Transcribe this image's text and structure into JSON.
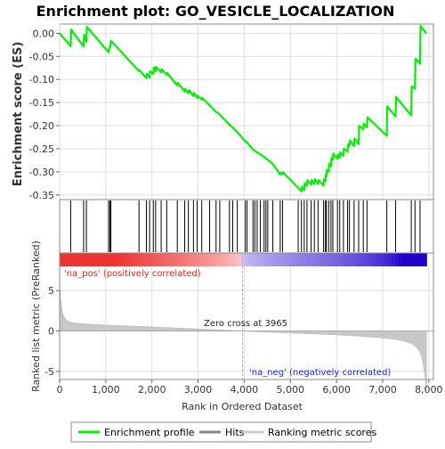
{
  "chart_data": {
    "type": "line",
    "title": "Enrichment plot: GO_VESICLE_LOCALIZATION",
    "xlabel": "Rank in Ordered Dataset",
    "ylabel_top": "Enrichment score (ES)",
    "ylabel_bottom": "Ranked list metric (PreRanked)",
    "xlim": [
      0,
      8100
    ],
    "x_ticks": [
      0,
      1000,
      2000,
      3000,
      4000,
      5000,
      6000,
      7000,
      8000
    ],
    "x_tick_labels": [
      "0",
      "1,000",
      "2,000",
      "3,000",
      "4,000",
      "5,000",
      "6,000",
      "7,000",
      "8,000"
    ],
    "es_ylim": [
      -0.36,
      0.02
    ],
    "es_ticks": [
      0.0,
      -0.05,
      -0.1,
      -0.15,
      -0.2,
      -0.25,
      -0.3,
      -0.35
    ],
    "es_tick_labels": [
      "0.00",
      "-0.05",
      "-0.10",
      "-0.15",
      "-0.20",
      "-0.25",
      "-0.30",
      "-0.35"
    ],
    "metric_ylim": [
      -6,
      8
    ],
    "metric_ticks": [
      5,
      0,
      -5
    ],
    "metric_tick_labels": [
      "5",
      "0",
      "-5"
    ],
    "annotations": {
      "pos_label": "'na_pos' (positively correlated)",
      "neg_label": "'na_neg' (negatively correlated)",
      "zero_cross": "Zero cross at 3965"
    },
    "zero_cross_rank": 3965,
    "legend": [
      {
        "label": "Enrichment profile",
        "color": "#00ee00"
      },
      {
        "label": "Hits",
        "color": "#888888"
      },
      {
        "label": "Ranking metric scores",
        "color": "#cccccc"
      }
    ],
    "colors": {
      "es_line": "#00ee00",
      "hit": "#000000",
      "metric_fill": "#c8c8c8",
      "pos_text": "#dd2222",
      "neg_text": "#2222cc",
      "gradient_pos": "#ee3333",
      "gradient_mid": "#ffffff",
      "gradient_neg": "#2200cc"
    },
    "hits": [
      240,
      520,
      580,
      1060,
      1090,
      1110,
      1720,
      1880,
      1950,
      2030,
      2080,
      2200,
      2320,
      2550,
      2710,
      2790,
      2900,
      2980,
      3080,
      3250,
      3390,
      3470,
      3680,
      3750,
      3850,
      4020,
      4060,
      4190,
      4230,
      4280,
      4350,
      4430,
      4470,
      4510,
      4620,
      4780,
      4830,
      5170,
      5240,
      5300,
      5360,
      5450,
      5520,
      5600,
      5720,
      5760,
      5780,
      5830,
      5880,
      5920,
      6020,
      6070,
      6150,
      6240,
      6280,
      6380,
      6480,
      6580,
      6660,
      7090,
      7280,
      7620,
      7700,
      7810
    ],
    "es_points": [
      [
        0,
        0.0
      ],
      [
        240,
        -0.028
      ],
      [
        250,
        0.008
      ],
      [
        520,
        -0.029
      ],
      [
        530,
        -0.003
      ],
      [
        580,
        -0.018
      ],
      [
        590,
        0.014
      ],
      [
        1060,
        -0.041
      ],
      [
        1070,
        -0.034
      ],
      [
        1100,
        -0.028
      ],
      [
        1110,
        -0.016
      ],
      [
        1720,
        -0.082
      ],
      [
        1730,
        -0.08
      ],
      [
        1880,
        -0.097
      ],
      [
        1890,
        -0.088
      ],
      [
        1950,
        -0.096
      ],
      [
        1960,
        -0.082
      ],
      [
        2030,
        -0.088
      ],
      [
        2040,
        -0.074
      ],
      [
        2080,
        -0.082
      ],
      [
        2090,
        -0.073
      ],
      [
        2200,
        -0.085
      ],
      [
        2210,
        -0.078
      ],
      [
        2320,
        -0.09
      ],
      [
        2330,
        -0.086
      ],
      [
        2550,
        -0.113
      ],
      [
        2560,
        -0.107
      ],
      [
        2710,
        -0.126
      ],
      [
        2720,
        -0.121
      ],
      [
        2790,
        -0.13
      ],
      [
        2800,
        -0.123
      ],
      [
        2900,
        -0.136
      ],
      [
        2910,
        -0.129
      ],
      [
        2980,
        -0.14
      ],
      [
        2990,
        -0.135
      ],
      [
        3080,
        -0.144
      ],
      [
        3090,
        -0.14
      ],
      [
        3250,
        -0.156
      ],
      [
        3390,
        -0.17
      ],
      [
        3470,
        -0.176
      ],
      [
        3680,
        -0.198
      ],
      [
        3750,
        -0.204
      ],
      [
        3850,
        -0.214
      ],
      [
        4020,
        -0.233
      ],
      [
        4060,
        -0.236
      ],
      [
        4190,
        -0.252
      ],
      [
        4230,
        -0.254
      ],
      [
        4280,
        -0.258
      ],
      [
        4350,
        -0.262
      ],
      [
        4430,
        -0.268
      ],
      [
        4470,
        -0.271
      ],
      [
        4510,
        -0.274
      ],
      [
        4620,
        -0.283
      ],
      [
        4780,
        -0.306
      ],
      [
        4790,
        -0.302
      ],
      [
        4830,
        -0.305
      ],
      [
        4840,
        -0.301
      ],
      [
        5170,
        -0.335
      ],
      [
        5240,
        -0.342
      ],
      [
        5250,
        -0.332
      ],
      [
        5300,
        -0.34
      ],
      [
        5310,
        -0.325
      ],
      [
        5360,
        -0.33
      ],
      [
        5370,
        -0.318
      ],
      [
        5450,
        -0.328
      ],
      [
        5460,
        -0.318
      ],
      [
        5520,
        -0.326
      ],
      [
        5530,
        -0.316
      ],
      [
        5600,
        -0.326
      ],
      [
        5610,
        -0.318
      ],
      [
        5720,
        -0.33
      ],
      [
        5730,
        -0.316
      ],
      [
        5760,
        -0.32
      ],
      [
        5770,
        -0.306
      ],
      [
        5780,
        -0.31
      ],
      [
        5790,
        -0.296
      ],
      [
        5830,
        -0.3
      ],
      [
        5840,
        -0.282
      ],
      [
        5880,
        -0.288
      ],
      [
        5890,
        -0.27
      ],
      [
        5920,
        -0.274
      ],
      [
        5930,
        -0.26
      ],
      [
        6020,
        -0.272
      ],
      [
        6030,
        -0.262
      ],
      [
        6070,
        -0.27
      ],
      [
        6080,
        -0.258
      ],
      [
        6150,
        -0.265
      ],
      [
        6160,
        -0.25
      ],
      [
        6240,
        -0.256
      ],
      [
        6250,
        -0.24
      ],
      [
        6280,
        -0.244
      ],
      [
        6290,
        -0.232
      ],
      [
        6380,
        -0.244
      ],
      [
        6390,
        -0.228
      ],
      [
        6480,
        -0.24
      ],
      [
        6490,
        -0.2
      ],
      [
        6580,
        -0.208
      ],
      [
        6590,
        -0.196
      ],
      [
        6660,
        -0.204
      ],
      [
        6670,
        -0.182
      ],
      [
        7090,
        -0.222
      ],
      [
        7100,
        -0.158
      ],
      [
        7280,
        -0.18
      ],
      [
        7290,
        -0.138
      ],
      [
        7620,
        -0.178
      ],
      [
        7630,
        -0.115
      ],
      [
        7700,
        -0.12
      ],
      [
        7710,
        -0.055
      ],
      [
        7810,
        -0.066
      ],
      [
        7820,
        0.016
      ],
      [
        7950,
        0.0
      ]
    ],
    "metric_curve": [
      [
        0,
        7.3
      ],
      [
        10,
        5.2
      ],
      [
        30,
        3.6
      ],
      [
        60,
        2.3
      ],
      [
        100,
        1.7
      ],
      [
        160,
        1.3
      ],
      [
        250,
        1.06
      ],
      [
        400,
        0.95
      ],
      [
        600,
        0.86
      ],
      [
        1000,
        0.74
      ],
      [
        1500,
        0.62
      ],
      [
        2000,
        0.5
      ],
      [
        2500,
        0.38
      ],
      [
        3000,
        0.26
      ],
      [
        3500,
        0.14
      ],
      [
        3965,
        0.0
      ],
      [
        4500,
        -0.14
      ],
      [
        5000,
        -0.26
      ],
      [
        5500,
        -0.36
      ],
      [
        6000,
        -0.48
      ],
      [
        6500,
        -0.64
      ],
      [
        7000,
        -0.85
      ],
      [
        7300,
        -1.05
      ],
      [
        7500,
        -1.3
      ],
      [
        7650,
        -1.65
      ],
      [
        7750,
        -2.1
      ],
      [
        7820,
        -2.8
      ],
      [
        7870,
        -3.8
      ],
      [
        7900,
        -4.9
      ],
      [
        7930,
        -6.3
      ],
      [
        7950,
        -7.4
      ]
    ]
  }
}
